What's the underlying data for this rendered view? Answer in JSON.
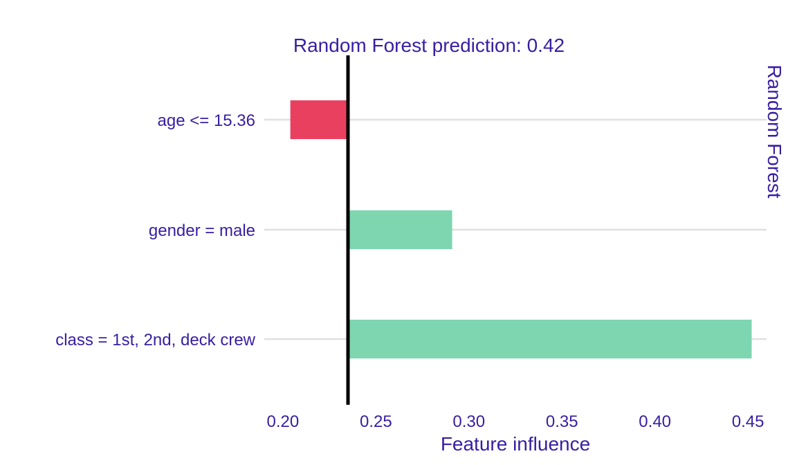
{
  "chart_data": {
    "type": "bar",
    "subtype": "break-down",
    "title": "Random Forest prediction:  0.42",
    "panel_label": "Random Forest",
    "xlabel": "Feature influence",
    "ylabel": "",
    "baseline": 0.235,
    "xlim": [
      0.19,
      0.46
    ],
    "x_ticks": [
      "0.20",
      "0.25",
      "0.30",
      "0.35",
      "0.40",
      "0.45"
    ],
    "grid": true,
    "legend": "none",
    "categories": [
      "age <= 15.36",
      "gender = male",
      "class = 1st, 2nd, deck crew"
    ],
    "bars": [
      {
        "label": "age <= 15.36",
        "start": 0.235,
        "end": 0.204
      },
      {
        "label": "gender = male",
        "start": 0.235,
        "end": 0.291
      },
      {
        "label": "class = 1st, 2nd, deck crew",
        "start": 0.235,
        "end": 0.452
      }
    ],
    "colors": {
      "positive": "#7dd6b0",
      "negative": "#ea4060",
      "text": "#371ea3",
      "grid": "#e0e0e0",
      "baseline": "#000000"
    }
  }
}
